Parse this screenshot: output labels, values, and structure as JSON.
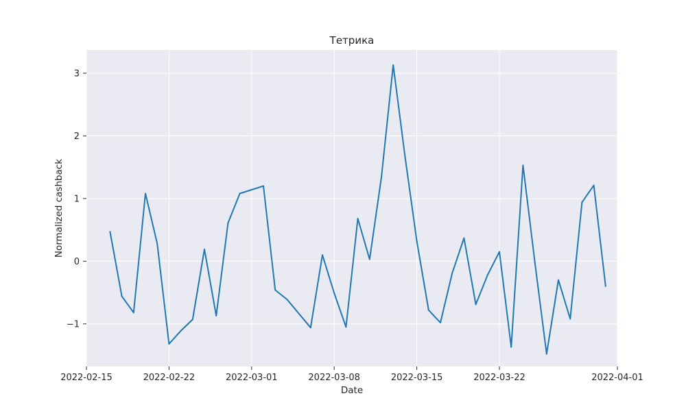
{
  "chart_data": {
    "type": "line",
    "title": "Тетрика",
    "xlabel": "Date",
    "ylabel": "Normalized cashback",
    "x_tick_labels": [
      "2022-02-15",
      "2022-02-22",
      "2022-03-01",
      "2022-03-08",
      "2022-03-15",
      "2022-03-22",
      "2022-04-01"
    ],
    "y_tick_labels": [
      "−1",
      "0",
      "1",
      "2",
      "3"
    ],
    "ylim": [
      -1.68,
      3.37
    ],
    "xlim": [
      "2022-02-15",
      "2022-04-01"
    ],
    "grid": true,
    "colors": {
      "line": "#1f77b4",
      "background": "#eaeaf2",
      "grid": "#ffffff"
    },
    "series": [
      {
        "x": [
          "2022-02-17",
          "2022-02-18",
          "2022-02-19",
          "2022-02-20",
          "2022-02-21",
          "2022-02-22",
          "2022-02-23",
          "2022-02-24",
          "2022-02-25",
          "2022-02-26",
          "2022-02-27",
          "2022-02-28",
          "2022-03-01",
          "2022-03-02",
          "2022-03-03",
          "2022-03-04",
          "2022-03-06",
          "2022-03-07",
          "2022-03-08",
          "2022-03-09",
          "2022-03-10",
          "2022-03-11",
          "2022-03-12",
          "2022-03-13",
          "2022-03-14",
          "2022-03-15",
          "2022-03-16",
          "2022-03-17",
          "2022-03-18",
          "2022-03-19",
          "2022-03-20",
          "2022-03-21",
          "2022-03-22",
          "2022-03-23",
          "2022-03-24",
          "2022-03-25",
          "2022-03-26",
          "2022-03-27",
          "2022-03-28",
          "2022-03-29",
          "2022-03-30",
          "2022-03-31"
        ],
        "values": [
          0.47,
          -0.56,
          -0.82,
          1.08,
          0.28,
          -1.32,
          -1.11,
          -0.93,
          0.19,
          -0.87,
          0.61,
          1.08,
          1.14,
          1.2,
          -0.46,
          -0.61,
          -1.06,
          0.1,
          -0.51,
          -1.05,
          0.68,
          0.03,
          1.34,
          3.13,
          1.67,
          0.32,
          -0.78,
          -0.98,
          -0.19,
          0.37,
          -0.69,
          -0.22,
          0.15,
          -1.37,
          1.53,
          -0.01,
          -1.48,
          -0.3,
          -0.92,
          0.94,
          1.21,
          -0.4
        ]
      }
    ]
  }
}
